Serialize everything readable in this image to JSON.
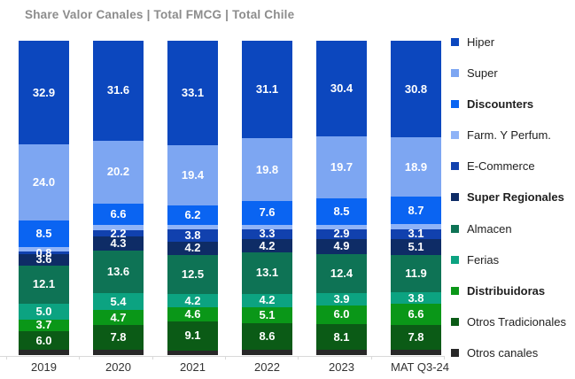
{
  "title": "Share Valor Canales | Total FMCG | Total Chile",
  "chart_data": {
    "type": "bar",
    "stacked": true,
    "percent_stacked": true,
    "grid": false,
    "legend_position": "right",
    "categories": [
      "2019",
      "2020",
      "2021",
      "2022",
      "2023",
      "MAT Q3-24"
    ],
    "series": [
      {
        "name": "Hiper",
        "color": "#0C47BE",
        "bold": false,
        "values": [
          32.9,
          31.6,
          33.1,
          31.1,
          30.4,
          30.8
        ],
        "labels": [
          "32.9",
          "31.6",
          "33.1",
          "31.1",
          "30.4",
          "30.8"
        ]
      },
      {
        "name": "Super",
        "color": "#7DA6F2",
        "bold": false,
        "values": [
          24.0,
          20.2,
          19.4,
          19.8,
          19.7,
          18.9
        ],
        "labels": [
          "24.0",
          "20.2",
          "19.4",
          "19.8",
          "19.7",
          "18.9"
        ]
      },
      {
        "name": "Discounters",
        "color": "#0A64F2",
        "bold": true,
        "values": [
          8.5,
          6.6,
          6.2,
          7.6,
          8.5,
          8.7
        ],
        "labels": [
          "8.5",
          "6.6",
          "6.2",
          "7.6",
          "8.5",
          "8.7"
        ]
      },
      {
        "name": "Farm. Y Perfum.",
        "color": "#8FB3F7",
        "bold": false,
        "values": [
          1.5,
          1.6,
          1.4,
          1.4,
          1.5,
          1.5
        ],
        "labels": [
          "",
          "",
          "",
          "",
          "",
          ""
        ]
      },
      {
        "name": "E-Commerce",
        "color": "#1141AE",
        "bold": false,
        "values": [
          0.8,
          2.2,
          3.8,
          3.3,
          2.9,
          3.1
        ],
        "labels": [
          "0.8",
          "2.2",
          "3.8",
          "3.3",
          "2.9",
          "3.1"
        ]
      },
      {
        "name": "Super Regionales",
        "color": "#0E2C66",
        "bold": true,
        "values": [
          3.6,
          4.3,
          4.2,
          4.2,
          4.9,
          5.1
        ],
        "labels": [
          "3.6",
          "4.3",
          "4.2",
          "4.2",
          "4.9",
          "5.1"
        ]
      },
      {
        "name": "Almacen",
        "color": "#0E7355",
        "bold": false,
        "values": [
          12.1,
          13.6,
          12.5,
          13.1,
          12.4,
          11.9
        ],
        "labels": [
          "12.1",
          "13.6",
          "12.5",
          "13.1",
          "12.4",
          "11.9"
        ]
      },
      {
        "name": "Ferias",
        "color": "#0CA381",
        "bold": false,
        "values": [
          5.0,
          5.4,
          4.2,
          4.2,
          3.9,
          3.8
        ],
        "labels": [
          "5.0",
          "5.4",
          "4.2",
          "4.2",
          "3.9",
          "3.8"
        ]
      },
      {
        "name": "Distribuidoras",
        "color": "#0A9718",
        "bold": true,
        "values": [
          3.7,
          4.7,
          4.6,
          5.1,
          6.0,
          6.6
        ],
        "labels": [
          "3.7",
          "4.7",
          "4.6",
          "5.1",
          "6.0",
          "6.6"
        ]
      },
      {
        "name": "Otros Tradicionales",
        "color": "#0B5B16",
        "bold": false,
        "values": [
          6.0,
          7.8,
          9.1,
          8.6,
          8.1,
          7.8
        ],
        "labels": [
          "6.0",
          "7.8",
          "9.1",
          "8.6",
          "8.1",
          "7.8"
        ]
      },
      {
        "name": "Otros canales",
        "color": "#282828",
        "bold": false,
        "values": [
          1.6,
          1.7,
          1.5,
          1.6,
          1.7,
          1.8
        ],
        "labels": [
          "",
          "",
          "",
          "",
          "",
          ""
        ]
      }
    ]
  }
}
